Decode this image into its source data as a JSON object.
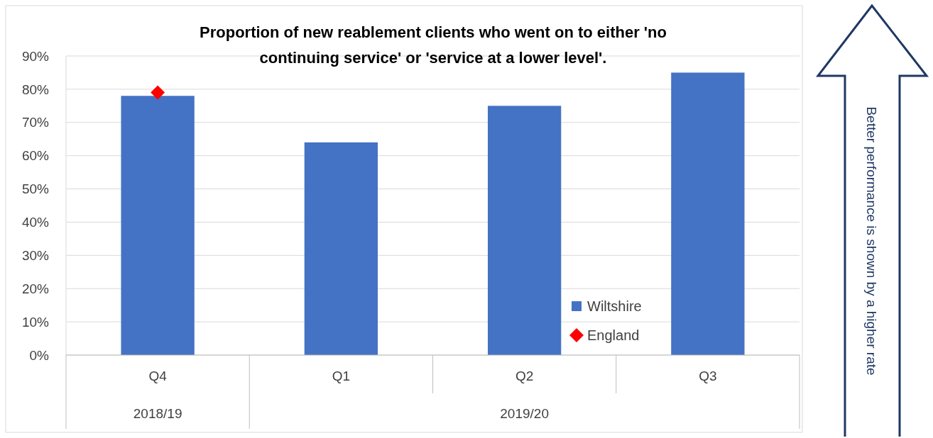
{
  "chart_data": {
    "type": "bar",
    "title": "Proportion of new reablement clients who went on to either 'no continuing service' or 'service at a lower level'.",
    "categories": [
      "Q4",
      "Q1",
      "Q2",
      "Q3"
    ],
    "series": [
      {
        "name": "Wiltshire",
        "color": "#4472c4",
        "values": [
          78,
          64,
          75,
          85
        ]
      },
      {
        "name": "England",
        "type": "scatter",
        "color": "#ff0000",
        "marker": "diamond",
        "values": [
          79,
          null,
          null,
          null
        ]
      }
    ],
    "ylim": [
      0,
      90
    ],
    "yticks": [
      {
        "value": 0,
        "label": "0%"
      },
      {
        "value": 10,
        "label": "10%"
      },
      {
        "value": 20,
        "label": "20%"
      },
      {
        "value": 30,
        "label": "30%"
      },
      {
        "value": 40,
        "label": "40%"
      },
      {
        "value": 50,
        "label": "50%"
      },
      {
        "value": 60,
        "label": "60%"
      },
      {
        "value": 70,
        "label": "70%"
      },
      {
        "value": 80,
        "label": "80%"
      },
      {
        "value": 90,
        "label": "90%"
      }
    ],
    "grid": "y",
    "legend": "bottom right",
    "annotations": [
      "2018/19",
      "2019/20",
      "Better performance is shown by a higher rate"
    ]
  }
}
